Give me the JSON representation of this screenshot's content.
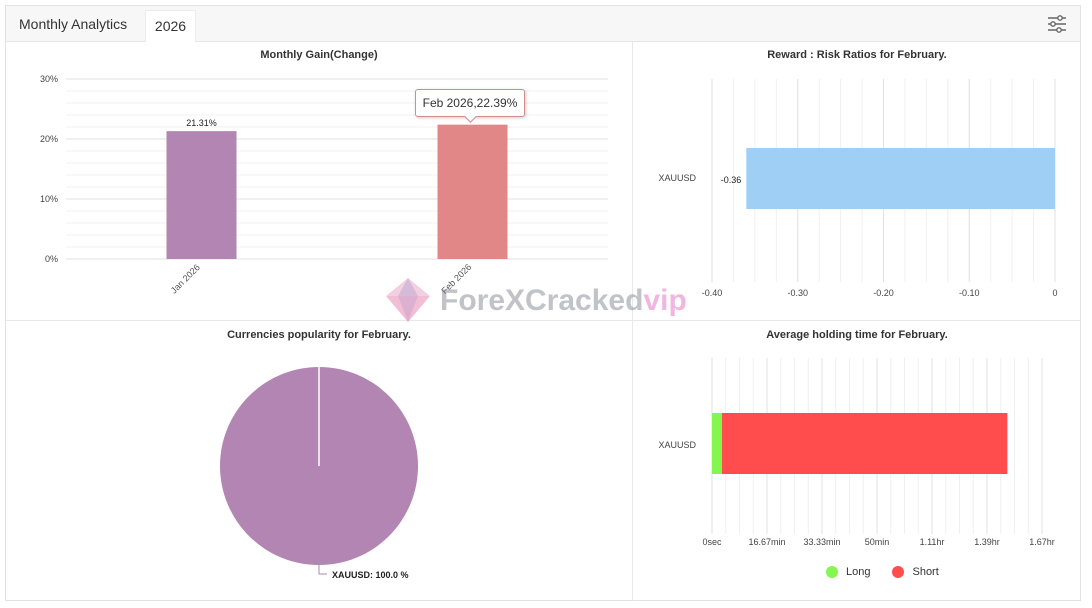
{
  "header": {
    "title": "Monthly Analytics",
    "year_tab": "2026",
    "filter_icon": "sliders-icon"
  },
  "watermark": {
    "text": "ForeXCracked",
    "accent": "vip",
    "icon": "diamond-logo-icon"
  },
  "tooltip": {
    "text": "Feb 2026,22.39%"
  },
  "chart_data": [
    {
      "type": "bar",
      "title": "Monthly Gain(Change)",
      "categories": [
        "Jan 2026",
        "Feb 2026"
      ],
      "values": [
        21.31,
        22.39
      ],
      "data_labels": [
        "21.31%",
        ""
      ],
      "colors": [
        "#b285b2",
        "#e28787"
      ],
      "ylim": [
        0,
        30
      ],
      "y_ticks": [
        0,
        10,
        20,
        30
      ],
      "y_tick_labels": [
        "0%",
        "10%",
        "20%",
        "30%"
      ],
      "grid": true
    },
    {
      "type": "bar",
      "orientation": "horizontal",
      "title": "Reward : Risk Ratios for February.",
      "categories": [
        "XAUUSD"
      ],
      "values": [
        -0.36
      ],
      "data_labels": [
        "-0.36"
      ],
      "color": "#a0cff6",
      "xlim": [
        -0.4,
        0
      ],
      "x_ticks": [
        -0.4,
        -0.3,
        -0.2,
        -0.1,
        0
      ],
      "x_tick_labels": [
        "-0.40",
        "-0.30",
        "-0.20",
        "-0.10",
        "0"
      ],
      "grid": true
    },
    {
      "type": "pie",
      "title": "Currencies popularity for February.",
      "labels": [
        "XAUUSD"
      ],
      "values": [
        100.0
      ],
      "data_labels": [
        "XAUUSD: 100.0 %"
      ],
      "colors": [
        "#b285b2"
      ]
    },
    {
      "type": "bar",
      "orientation": "horizontal",
      "stacked": true,
      "title": "Average holding time for February.",
      "categories": [
        "XAUUSD"
      ],
      "series": [
        {
          "name": "Long",
          "values": [
            3
          ],
          "color": "#83f74d"
        },
        {
          "name": "Short",
          "values": [
            86.5
          ],
          "color": "#ff4c4c"
        }
      ],
      "xlim": [
        0,
        100
      ],
      "x_ticks": [
        0,
        16.67,
        33.33,
        50,
        66.67,
        83.33,
        100
      ],
      "x_tick_labels": [
        "0sec",
        "16.67min",
        "33.33min",
        "50min",
        "1.11hr",
        "1.39hr",
        "1.67hr"
      ],
      "x_unit": "minutes",
      "legend_position": "bottom",
      "grid": true
    }
  ]
}
